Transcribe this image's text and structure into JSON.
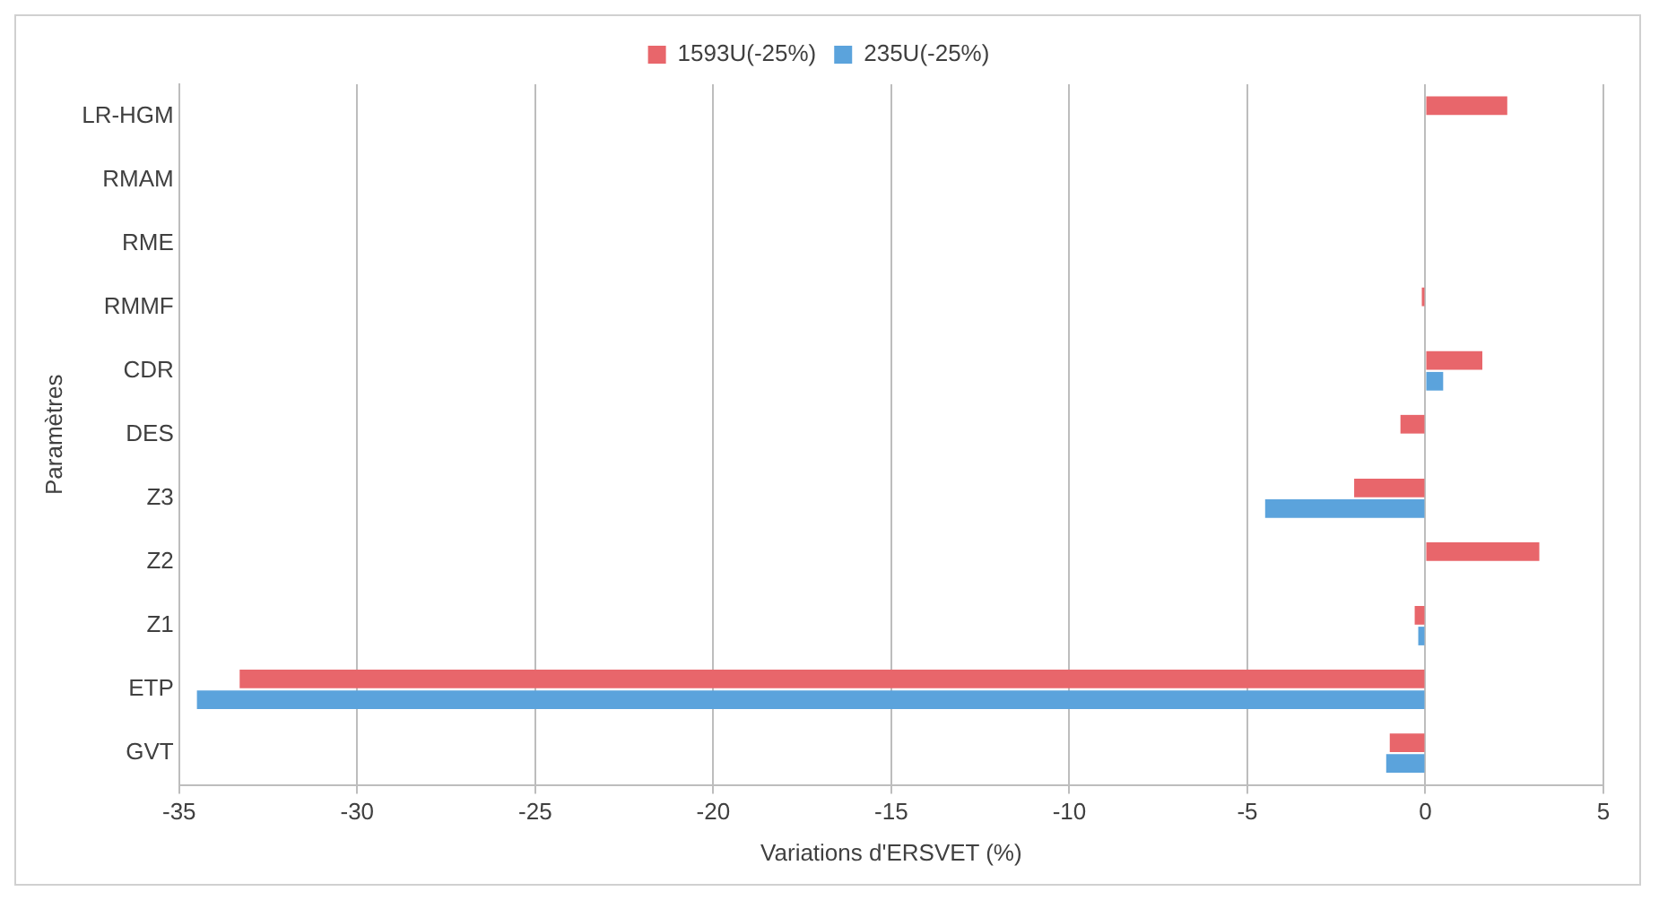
{
  "chart_data": {
    "type": "bar",
    "orientation": "horizontal",
    "xlabel": "Variations d'ERSVET (%)",
    "ylabel": "Paramètres",
    "categories": [
      "LR-HGM",
      "RMAM",
      "RME",
      "RMMF",
      "CDR",
      "DES",
      "Z3",
      "Z2",
      "Z1",
      "ETP",
      "GVT"
    ],
    "series": [
      {
        "name": "1593U(-25%)",
        "color": "#e8666b",
        "values": [
          2.3,
          0,
          0,
          -0.1,
          1.6,
          -0.7,
          -2.0,
          3.2,
          -0.3,
          -33.3,
          -1.0
        ]
      },
      {
        "name": "235U(-25%)",
        "color": "#5ba3dc",
        "values": [
          0,
          0,
          0,
          0,
          0.5,
          0,
          -4.5,
          0,
          -0.2,
          -34.5,
          -1.1
        ]
      }
    ],
    "xlim": [
      -35,
      5
    ],
    "xticks": [
      -35,
      -30,
      -25,
      -20,
      -15,
      -10,
      -5,
      0,
      5
    ],
    "grid": "x",
    "legend": "top"
  }
}
